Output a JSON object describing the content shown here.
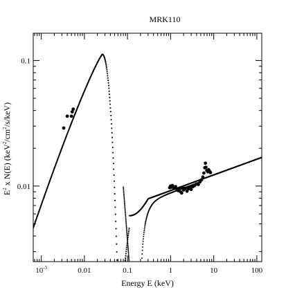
{
  "chart_data": {
    "type": "scatter",
    "title": "MRK110",
    "xlabel": "Energy E (keV)",
    "ylabel": {
      "base": "E",
      "exp1": "2",
      "mid1": " x N(E) (keV",
      "exp2": "2",
      "mid2": "/cm",
      "exp3": "2",
      "tail": "/s/keV)"
    },
    "x_scale": "log",
    "y_scale": "log",
    "xlim": [
      0.00065,
      130
    ],
    "ylim": [
      0.0025,
      0.165
    ],
    "x_ticks": [
      {
        "value": 0.001,
        "label": "10",
        "exp": "-3"
      },
      {
        "value": 0.01,
        "label": "0.01",
        "exp": ""
      },
      {
        "value": 0.1,
        "label": "0.1",
        "exp": ""
      },
      {
        "value": 1,
        "label": "1",
        "exp": ""
      },
      {
        "value": 10,
        "label": "10",
        "exp": ""
      },
      {
        "value": 100,
        "label": "100",
        "exp": ""
      }
    ],
    "y_ticks": [
      {
        "value": 0.01,
        "label": "0.01"
      },
      {
        "value": 0.1,
        "label": "0.1"
      }
    ],
    "model_params": {
      "bb_peak_energy": 0.026,
      "bb_peak_value": 0.112,
      "bb_min_energy": 0.0007,
      "bb_min_value": 0.005,
      "dip_energy": 0.135,
      "dip_floor": 0.0078,
      "powerlaw_norm_at_1keV": 0.0092,
      "powerlaw_index": 0.125
    },
    "series": [
      {
        "kind": "model-total",
        "points": [
          [
            0.00065,
            0.0048
          ],
          [
            0.001,
            0.0069
          ],
          [
            0.002,
            0.0158
          ],
          [
            0.003,
            0.025
          ],
          [
            0.004,
            0.034
          ],
          [
            0.006,
            0.048
          ],
          [
            0.01,
            0.073
          ],
          [
            0.015,
            0.094
          ],
          [
            0.02,
            0.107
          ],
          [
            0.026,
            0.112
          ],
          [
            0.03,
            0.111
          ],
          [
            0.04,
            0.097
          ],
          [
            0.05,
            0.075
          ],
          [
            0.06,
            0.052
          ],
          [
            0.07,
            0.034
          ],
          [
            0.08,
            0.021
          ],
          [
            0.09,
            0.0135
          ],
          [
            0.1,
            0.0101
          ],
          [
            0.11,
            0.0087
          ],
          [
            0.125,
            0.0081
          ],
          [
            0.14,
            0.0078
          ],
          [
            0.2,
            0.0081
          ],
          [
            0.5,
            0.0087
          ],
          [
            1,
            0.0092
          ],
          [
            2,
            0.01
          ],
          [
            5,
            0.0113
          ],
          [
            10,
            0.0123
          ],
          [
            30,
            0.014
          ],
          [
            130,
            0.016
          ]
        ]
      },
      {
        "kind": "component-blackbody-tail",
        "points": [
          [
            0.08,
            0.0098
          ],
          [
            0.09,
            0.0058
          ],
          [
            0.1,
            0.0037
          ],
          [
            0.11,
            0.0024
          ]
        ]
      },
      {
        "kind": "component-absorbed",
        "points": [
          [
            0.195,
            0.0024
          ],
          [
            0.22,
            0.0033
          ],
          [
            0.26,
            0.0048
          ],
          [
            0.3,
            0.0058
          ],
          [
            0.4,
            0.0069
          ],
          [
            0.55,
            0.0077
          ],
          [
            0.7,
            0.0083
          ],
          [
            1,
            0.0088
          ],
          [
            1.5,
            0.0093
          ],
          [
            2,
            0.0096
          ],
          [
            3,
            0.01
          ],
          [
            5,
            0.0106
          ]
        ]
      },
      {
        "kind": "data",
        "points": [
          [
            0.0033,
            0.029
          ],
          [
            0.004,
            0.036
          ],
          [
            0.005,
            0.036
          ],
          [
            0.0052,
            0.039
          ],
          [
            0.0055,
            0.041
          ],
          [
            0.95,
            0.0097
          ],
          [
            1.0,
            0.01
          ],
          [
            1.05,
            0.0098
          ],
          [
            1.1,
            0.0101
          ],
          [
            1.2,
            0.0096
          ],
          [
            1.3,
            0.0099
          ],
          [
            1.4,
            0.0094
          ],
          [
            1.5,
            0.0092
          ],
          [
            1.6,
            0.0095
          ],
          [
            1.7,
            0.009
          ],
          [
            1.8,
            0.0088
          ],
          [
            1.9,
            0.0097
          ],
          [
            2.0,
            0.0093
          ],
          [
            2.2,
            0.0096
          ],
          [
            2.4,
            0.0091
          ],
          [
            2.6,
            0.0095
          ],
          [
            2.8,
            0.0098
          ],
          [
            3.0,
            0.0094
          ],
          [
            3.3,
            0.0099
          ],
          [
            3.6,
            0.0101
          ],
          [
            4.0,
            0.0104
          ],
          [
            4.4,
            0.0103
          ],
          [
            4.8,
            0.0108
          ],
          [
            5.2,
            0.0112
          ],
          [
            5.6,
            0.0118
          ],
          [
            5.9,
            0.0127
          ],
          [
            6.2,
            0.014
          ],
          [
            6.4,
            0.0152
          ],
          [
            6.6,
            0.0141
          ],
          [
            6.9,
            0.0133
          ],
          [
            7.3,
            0.013
          ],
          [
            7.6,
            0.0135
          ],
          [
            8.0,
            0.0131
          ],
          [
            8.4,
            0.0128
          ]
        ]
      }
    ]
  }
}
